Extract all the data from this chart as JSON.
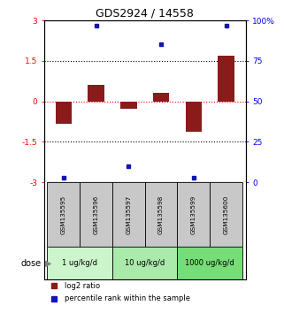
{
  "title": "GDS2924 / 14558",
  "samples": [
    "GSM135595",
    "GSM135596",
    "GSM135597",
    "GSM135598",
    "GSM135599",
    "GSM135600"
  ],
  "log2_ratio": [
    -0.82,
    0.62,
    -0.28,
    0.32,
    -1.12,
    1.68
  ],
  "percentile_rank": [
    3,
    97,
    10,
    85,
    3,
    97
  ],
  "ylim_left": [
    -3,
    3
  ],
  "ylim_right": [
    0,
    100
  ],
  "yticks_left": [
    -3,
    -1.5,
    0,
    1.5,
    3
  ],
  "yticks_right": [
    0,
    25,
    50,
    75,
    100
  ],
  "ytick_labels_left": [
    "-3",
    "-1.5",
    "0",
    "1.5",
    "3"
  ],
  "ytick_labels_right": [
    "0",
    "25",
    "50",
    "75",
    "100%"
  ],
  "bar_color": "#8B1A1A",
  "dot_color": "#1414B4",
  "dose_groups": [
    {
      "label": "1 ug/kg/d",
      "color": "#ccf5cc"
    },
    {
      "label": "10 ug/kg/d",
      "color": "#aaeaaa"
    },
    {
      "label": "1000 ug/kg/d",
      "color": "#77dd77"
    }
  ],
  "legend_red_label": "log2 ratio",
  "legend_blue_label": "percentile rank within the sample",
  "dose_label": "dose",
  "bar_width": 0.5,
  "sample_bg_color": "#c8c8c8",
  "axis_bg_color": "#ffffff",
  "title_fontsize": 9
}
